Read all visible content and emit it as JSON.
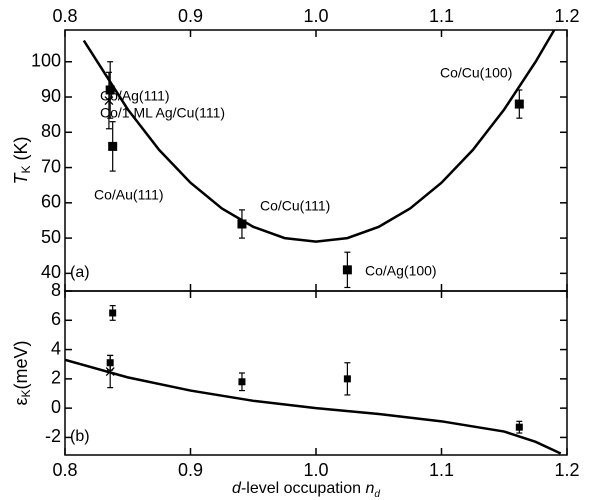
{
  "chart_data": [
    {
      "type": "scatter",
      "ylabel": {
        "symbol": "T",
        "sub": "K",
        "unit": " (K)"
      },
      "panel_label": "(a)",
      "xlim": [
        0.8,
        1.2
      ],
      "xticks": [
        0.8,
        0.9,
        {
          "value": 1,
          "label": "1.0"
        },
        1.1,
        1.2
      ],
      "ylim": [
        35,
        109
      ],
      "yticks": [
        40,
        50,
        60,
        70,
        80,
        90,
        100
      ],
      "color": "#000000",
      "squares": {
        "x": [
          0.836,
          0.838,
          0.941,
          1.025,
          1.162
        ],
        "values": [
          92,
          76,
          54,
          41,
          88
        ],
        "errors": [
          8,
          7,
          4,
          5,
          4
        ]
      },
      "crosses": {
        "x": [
          0.835
        ],
        "values": [
          89
        ],
        "errors": [
          8
        ]
      },
      "curve": {
        "x": [
          0.815,
          0.85,
          0.875,
          0.9,
          0.925,
          0.95,
          0.975,
          1.0,
          1.025,
          1.05,
          1.075,
          1.1,
          1.125,
          1.15,
          1.175,
          1.19
        ],
        "values": [
          106.0,
          86.5,
          75.0,
          65.7,
          58.4,
          53.2,
          50.0,
          49,
          50.0,
          53.2,
          58.4,
          65.7,
          75.0,
          86.5,
          100.0,
          109.1
        ]
      },
      "annotations": [
        "Co/Ag(111)",
        "Co/1 ML Ag/Cu(111)",
        "Co/Au(111)",
        "Co/Cu(111)",
        "Co/Ag(100)",
        "Co/Cu(100)"
      ]
    },
    {
      "type": "scatter",
      "ylabel": {
        "symbol": "ε",
        "sub": "K",
        "unit": "(meV)"
      },
      "xlabel": {
        "italic": "d",
        "text": "-level occupation ",
        "symbol": "n",
        "sub": "d"
      },
      "panel_label": "(b)",
      "xlim": [
        0.8,
        1.2
      ],
      "xticks": [
        0.8,
        0.9,
        {
          "value": 1,
          "label": "1.0"
        },
        1.1,
        1.2
      ],
      "ylim": [
        -3.2,
        8
      ],
      "yticks": [
        -2,
        0,
        2,
        4,
        6,
        8
      ],
      "color": "#000000",
      "squares": {
        "x": [
          0.838,
          0.836,
          0.941,
          1.025,
          1.162
        ],
        "values": [
          6.5,
          3.1,
          1.8,
          2.0,
          -1.3
        ],
        "errors": [
          0.5,
          0.5,
          0.6,
          1.1,
          0.4
        ]
      },
      "crosses": {
        "x": [
          0.836
        ],
        "values": [
          2.5
        ],
        "errors": [
          1.1
        ]
      },
      "curve": {
        "x": [
          0.8,
          0.85,
          0.9,
          0.95,
          1.0,
          1.05,
          1.1,
          1.15,
          1.175,
          1.195
        ],
        "values": [
          3.3,
          2.1,
          1.2,
          0.5,
          0.0,
          -0.4,
          -0.9,
          -1.6,
          -2.3,
          -3.1
        ]
      }
    }
  ]
}
